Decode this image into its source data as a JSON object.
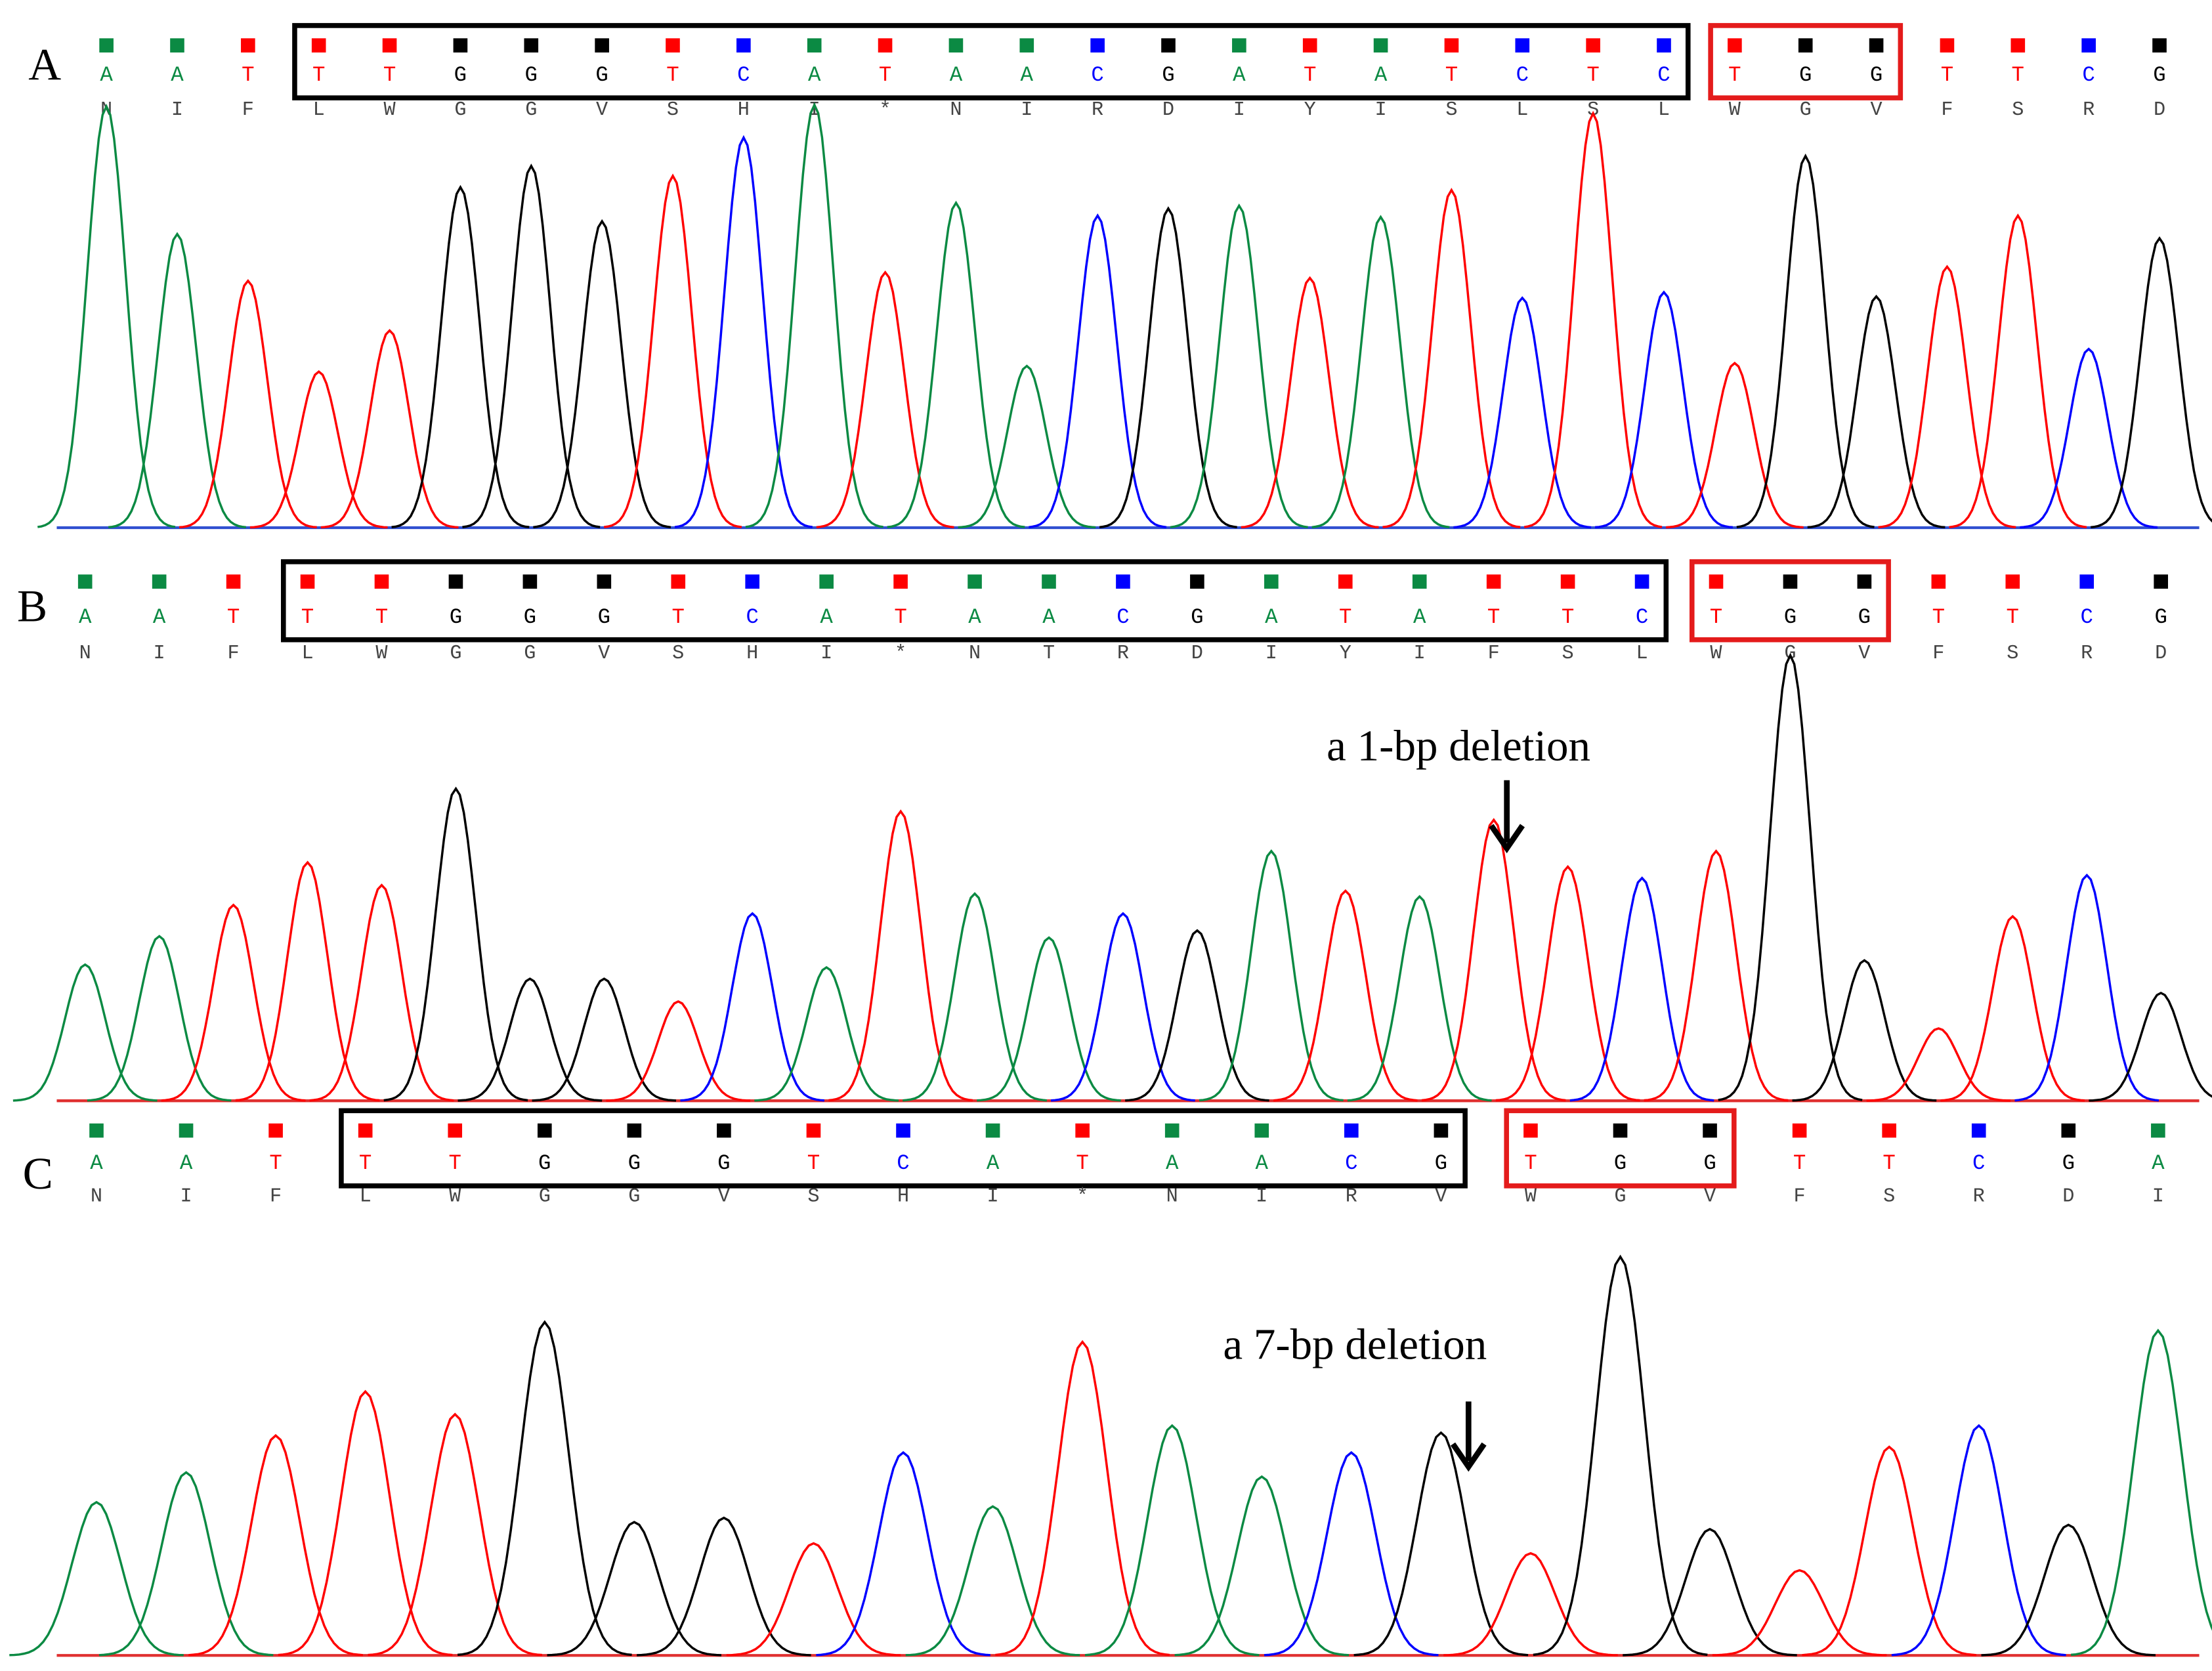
{
  "base_colors": {
    "A": "#0b8a43",
    "C": "#0000ff",
    "G": "#000000",
    "T": "#ff0000"
  },
  "panels": [
    {
      "label": "A",
      "sequence": {
        "left": [
          "A",
          "A",
          "T"
        ],
        "target": [
          "T",
          "T",
          "G",
          "G",
          "G",
          "T",
          "C",
          "A",
          "T",
          "A",
          "A",
          "C",
          "G",
          "A",
          "T",
          "A",
          "T",
          "C",
          "T",
          "C"
        ],
        "pam": [
          "T",
          "G",
          "G"
        ],
        "right": [
          "T",
          "T",
          "C",
          "G"
        ]
      },
      "amino_acids": [
        "N",
        "I",
        "F",
        "L",
        "W",
        "G",
        "G",
        "V",
        "S",
        "H",
        "I",
        "*",
        "N",
        "I",
        "R",
        "D",
        "I",
        "Y",
        "I",
        "S",
        "L",
        "S",
        "L",
        "W",
        "G",
        "V",
        "F",
        "S",
        "R",
        "D"
      ],
      "peaks": [
        297,
        207,
        174,
        110,
        139,
        240,
        255,
        216,
        248,
        275,
        298,
        180,
        229,
        114,
        220,
        225,
        227,
        176,
        219,
        238,
        162,
        292,
        166,
        116,
        262,
        163,
        184,
        220,
        126,
        204
      ]
    },
    {
      "label": "B",
      "sequence": {
        "left": [
          "A",
          "A",
          "T"
        ],
        "target": [
          "T",
          "T",
          "G",
          "G",
          "G",
          "T",
          "C",
          "A",
          "T",
          "A",
          "A",
          "C",
          "G",
          "A",
          "T",
          "A",
          "T",
          "T",
          "C"
        ],
        "pam": [
          "T",
          "G",
          "G"
        ],
        "right": [
          "T",
          "T",
          "C",
          "G"
        ]
      },
      "amino_acids": [
        "N",
        "I",
        "F",
        "L",
        "W",
        "G",
        "G",
        "V",
        "S",
        "H",
        "I",
        "*",
        "N",
        "T",
        "R",
        "D",
        "I",
        "Y",
        "I",
        "F",
        "S",
        "L",
        "W",
        "G",
        "V",
        "F",
        "S",
        "R",
        "D"
      ],
      "peaks": [
        96,
        116,
        138,
        168,
        152,
        220,
        86,
        86,
        70,
        132,
        94,
        204,
        146,
        115,
        132,
        120,
        176,
        148,
        144,
        198,
        165,
        157,
        176,
        314,
        99,
        51,
        130,
        159,
        76
      ],
      "annotation": "a 1-bp deletion"
    },
    {
      "label": "C",
      "sequence": {
        "left": [
          "A",
          "A",
          "T"
        ],
        "target": [
          "T",
          "T",
          "G",
          "G",
          "G",
          "T",
          "C",
          "A",
          "T",
          "A",
          "A",
          "C",
          "G"
        ],
        "pam": [
          "T",
          "G",
          "G"
        ],
        "right": [
          "T",
          "T",
          "C",
          "G",
          "A"
        ]
      },
      "amino_acids": [
        "N",
        "I",
        "F",
        "L",
        "W",
        "G",
        "G",
        "V",
        "S",
        "H",
        "I",
        "*",
        "N",
        "I",
        "R",
        "V",
        "W",
        "G",
        "V",
        "F",
        "S",
        "R",
        "D",
        "I"
      ],
      "peaks": [
        108,
        129,
        155,
        186,
        170,
        235,
        94,
        97,
        79,
        143,
        105,
        221,
        162,
        126,
        143,
        157,
        72,
        281,
        89,
        60,
        147,
        162,
        92,
        229
      ],
      "annotation": "a 7-bp deletion"
    }
  ]
}
